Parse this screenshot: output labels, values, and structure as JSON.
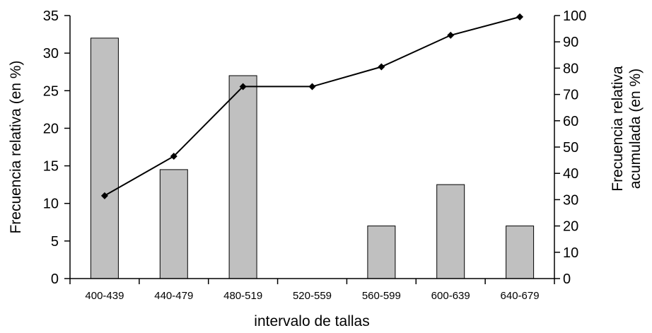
{
  "chart_data": {
    "type": "bar",
    "categories": [
      "400-439",
      "440-479",
      "480-519",
      "520-559",
      "560-599",
      "600-639",
      "640-679"
    ],
    "series": [
      {
        "type": "bar",
        "axis": "left",
        "values": [
          32,
          14.5,
          27,
          0,
          7,
          12.5,
          7
        ],
        "color": "#c0c0c0"
      },
      {
        "type": "line",
        "axis": "right",
        "values": [
          31.5,
          46.5,
          73,
          73,
          80.5,
          92.5,
          99.5
        ],
        "color": "#000000"
      }
    ],
    "xlabel": "intervalo de tallas",
    "ylabel": "Frecuencia relativa (en %)",
    "ylabel_right": [
      "Frecuencia relativa",
      "acumulada (en %)"
    ],
    "ylim": [
      0,
      35
    ],
    "yticks": [
      0,
      5,
      10,
      15,
      20,
      25,
      30,
      35
    ],
    "ylim_right": [
      0,
      100
    ],
    "yticks_right": [
      0,
      10,
      20,
      30,
      40,
      50,
      60,
      70,
      80,
      90,
      100
    ],
    "grid": false,
    "legend": "none"
  }
}
